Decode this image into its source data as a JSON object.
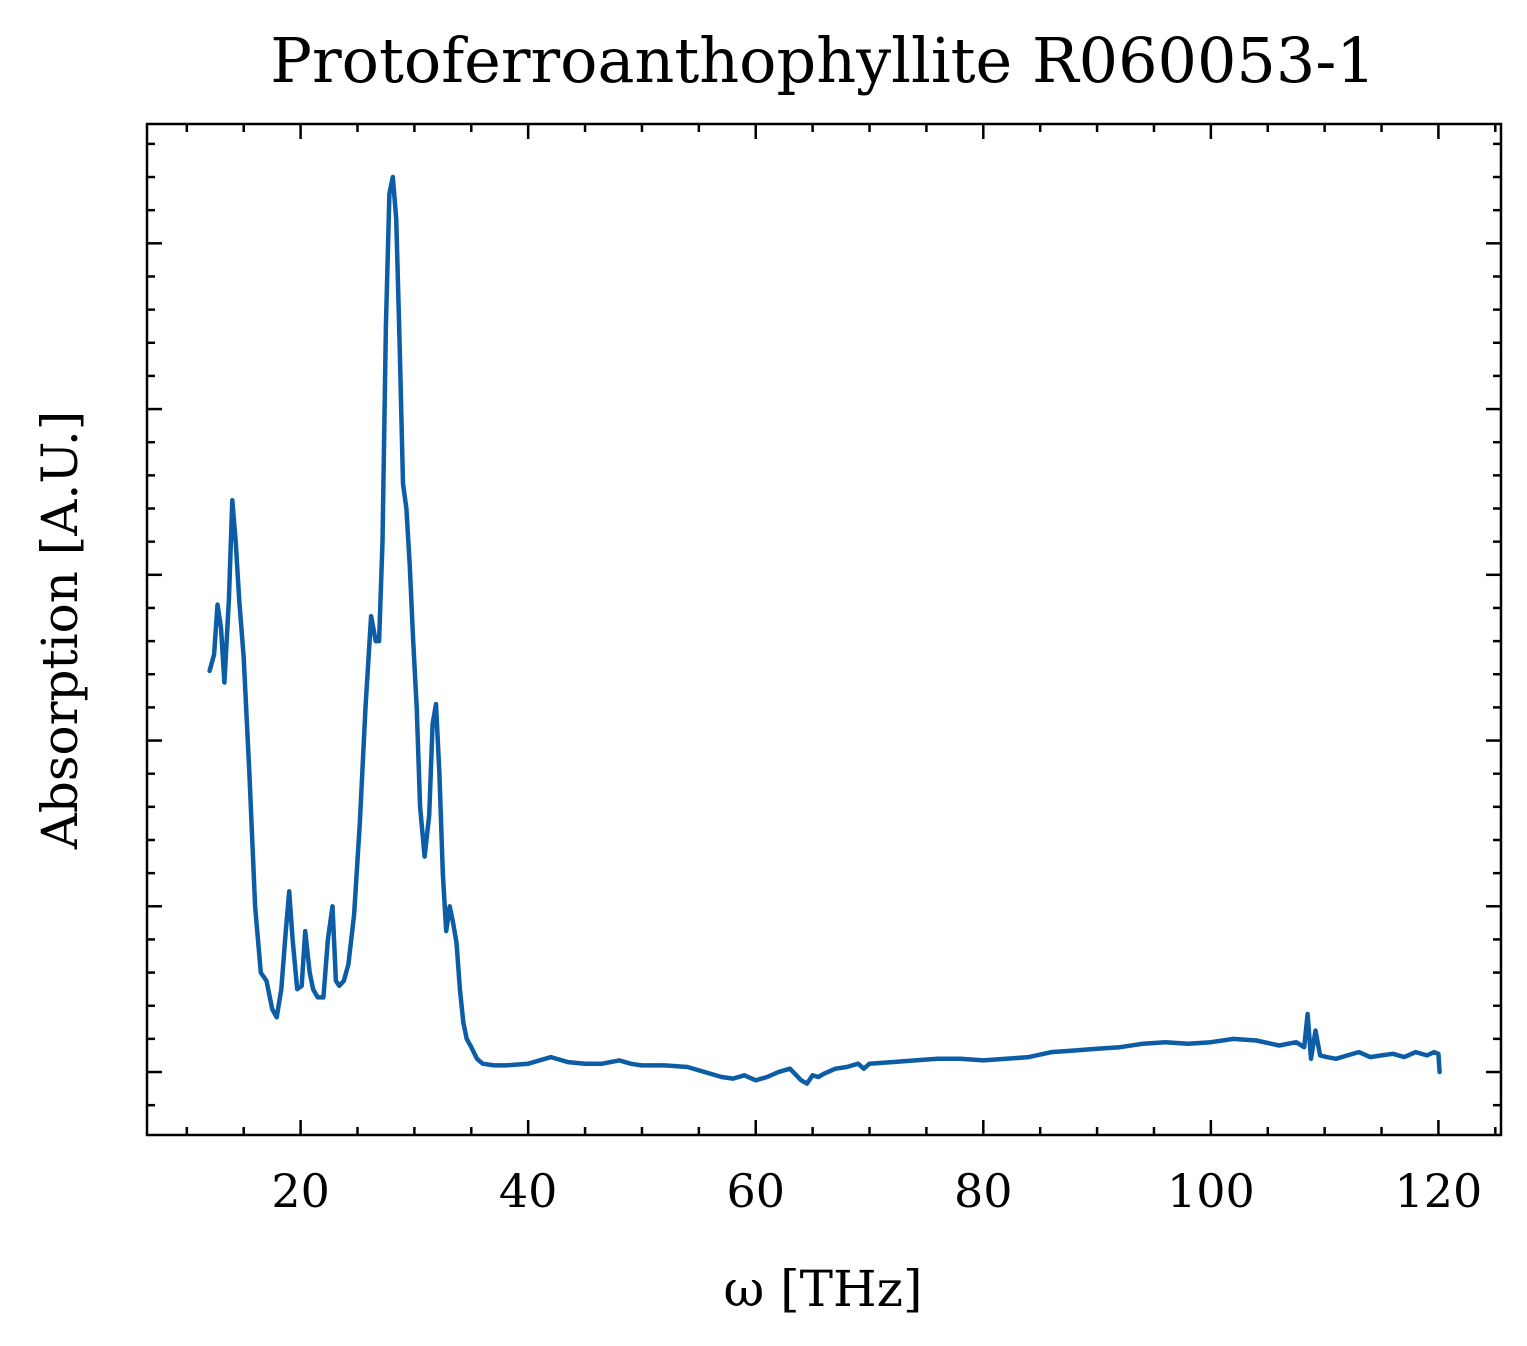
{
  "chart_data": {
    "type": "line",
    "title": "Protoferroanthophyllite R060053-1",
    "xlabel": "ω [THz]",
    "ylabel": "Absorption [A.U.]",
    "xlim": [
      6.5,
      125.5
    ],
    "ylim": [
      -0.38,
      5.72
    ],
    "x_ticks": [
      20,
      40,
      60,
      80,
      100,
      120
    ],
    "x_tick_labels": [
      "20",
      "40",
      "60",
      "80",
      "100",
      "120"
    ],
    "x_minor_step": 5,
    "y_ticks": [
      0,
      1,
      2,
      3,
      4,
      5
    ],
    "y_tick_labels_shown": false,
    "y_minor_step": 0.2,
    "grid": false,
    "line_color": "#0c5da5",
    "series": [
      {
        "x": [
          12.0,
          12.4,
          12.7,
          13.0,
          13.3,
          13.7,
          14.0,
          14.3,
          14.6,
          15.0,
          15.5,
          16.0,
          16.5,
          17.0,
          17.5,
          17.9,
          18.3,
          18.7,
          19.0,
          19.3,
          19.7,
          20.1,
          20.4,
          20.8,
          21.1,
          21.5,
          22.0,
          22.4,
          22.8,
          23.1,
          23.4,
          23.8,
          24.2,
          24.7,
          25.2,
          25.7,
          26.2,
          26.6,
          26.9,
          27.2,
          27.5,
          27.8,
          28.1,
          28.4,
          28.7,
          29.0,
          29.3,
          29.6,
          29.9,
          30.2,
          30.5,
          30.9,
          31.3,
          31.6,
          31.9,
          32.2,
          32.5,
          32.8,
          33.1,
          33.4,
          33.7,
          34.0,
          34.3,
          34.6,
          35.0,
          35.5,
          36.0,
          37.0,
          38.0,
          40.0,
          42.0,
          43.5,
          45.0,
          46.5,
          48.0,
          49.0,
          50.0,
          52.0,
          54.0,
          55.5,
          57.0,
          58.0,
          59.0,
          60.0,
          61.0,
          62.0,
          63.0,
          64.0,
          64.5,
          65.0,
          65.5,
          66.0,
          67.0,
          68.0,
          69.0,
          69.5,
          70.0,
          72.0,
          74.0,
          76.0,
          78.0,
          80.0,
          82.0,
          84.0,
          86.0,
          88.0,
          90.0,
          92.0,
          94.0,
          96.0,
          98.0,
          100.0,
          102.0,
          104.0,
          106.0,
          107.5,
          108.2,
          108.5,
          108.8,
          109.2,
          109.6,
          110.2,
          111.0,
          112.0,
          113.0,
          114.0,
          115.0,
          116.0,
          117.0,
          118.0,
          119.0,
          119.6,
          120.0,
          120.1
        ],
        "y": [
          2.42,
          2.52,
          2.82,
          2.68,
          2.35,
          2.85,
          3.45,
          3.2,
          2.85,
          2.5,
          1.8,
          1.0,
          0.6,
          0.55,
          0.38,
          0.33,
          0.5,
          0.85,
          1.09,
          0.8,
          0.5,
          0.52,
          0.85,
          0.6,
          0.5,
          0.45,
          0.45,
          0.8,
          1.0,
          0.55,
          0.52,
          0.55,
          0.65,
          0.95,
          1.5,
          2.2,
          2.75,
          2.6,
          2.6,
          3.2,
          4.5,
          5.3,
          5.4,
          5.15,
          4.4,
          3.55,
          3.4,
          3.05,
          2.6,
          2.2,
          1.6,
          1.3,
          1.55,
          2.1,
          2.22,
          1.8,
          1.2,
          0.85,
          1.0,
          0.9,
          0.78,
          0.5,
          0.3,
          0.2,
          0.15,
          0.08,
          0.05,
          0.04,
          0.04,
          0.05,
          0.09,
          0.06,
          0.05,
          0.05,
          0.07,
          0.05,
          0.04,
          0.04,
          0.03,
          0.0,
          -0.03,
          -0.04,
          -0.02,
          -0.05,
          -0.03,
          0.0,
          0.02,
          -0.05,
          -0.07,
          -0.02,
          -0.03,
          -0.01,
          0.02,
          0.03,
          0.05,
          0.02,
          0.05,
          0.06,
          0.07,
          0.08,
          0.08,
          0.07,
          0.08,
          0.09,
          0.12,
          0.13,
          0.14,
          0.15,
          0.17,
          0.18,
          0.17,
          0.18,
          0.2,
          0.19,
          0.16,
          0.18,
          0.15,
          0.35,
          0.08,
          0.25,
          0.1,
          0.09,
          0.08,
          0.1,
          0.12,
          0.09,
          0.1,
          0.11,
          0.09,
          0.12,
          0.1,
          0.12,
          0.11,
          0.0
        ]
      }
    ]
  }
}
